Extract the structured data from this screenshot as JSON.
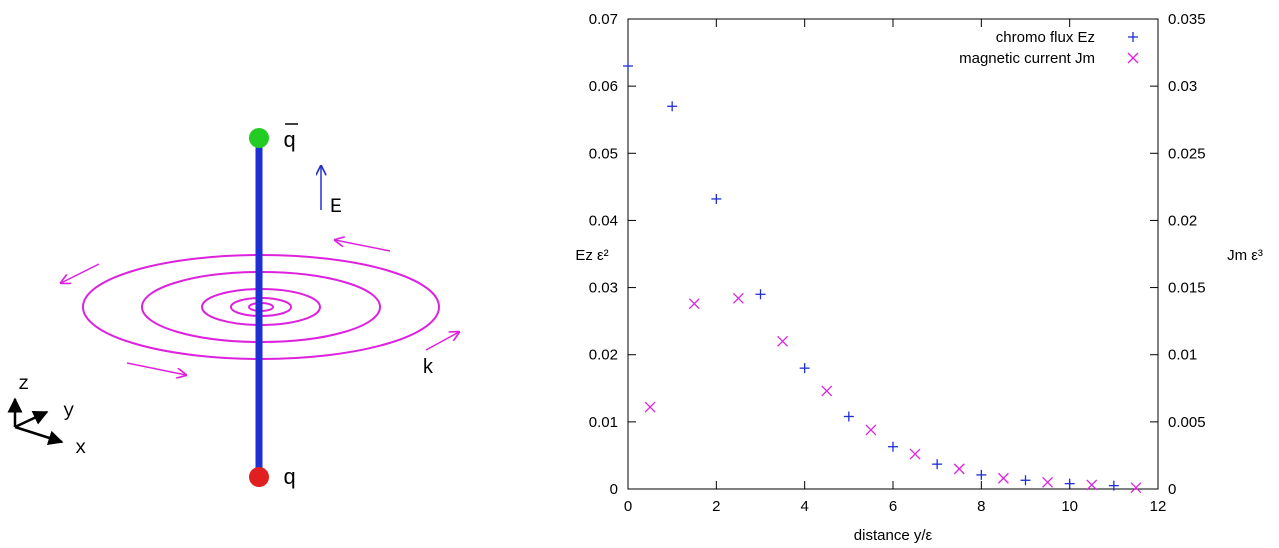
{
  "diagram": {
    "labels": {
      "qbar": "q",
      "q": "q",
      "E": "E",
      "k": "k",
      "axis_z": "z",
      "axis_y": "y",
      "axis_x": "x"
    },
    "colors": {
      "flux_tube": "#1f2fd6",
      "quark": "#e02020",
      "antiquark": "#22cc22",
      "magnetic_current": "#dd22dd",
      "field_arrow": "#2233cc",
      "axes": "#000000"
    }
  },
  "chart_data": {
    "type": "scatter",
    "xlabel": "distance y/ε",
    "ylabel": "Ez ε²",
    "y2label": "Jm ε³",
    "xlim": [
      0,
      12
    ],
    "ylim": [
      0,
      0.07
    ],
    "y2lim": [
      0,
      0.035
    ],
    "xticks": [
      "0",
      "2",
      "4",
      "6",
      "8",
      "10",
      "12"
    ],
    "yticks": [
      "0",
      "0.01",
      "0.02",
      "0.03",
      "0.04",
      "0.05",
      "0.06",
      "0.07"
    ],
    "y2ticks": [
      "0",
      "0.005",
      "0.01",
      "0.015",
      "0.02",
      "0.025",
      "0.03",
      "0.035"
    ],
    "legend_position": "top-right",
    "series": [
      {
        "name": "chromo flux Ez",
        "marker": "+",
        "color": "#1f2fd6",
        "axis": "left",
        "x": [
          0,
          1,
          2,
          3,
          4,
          5,
          6,
          7,
          8,
          9,
          10,
          11
        ],
        "y": [
          0.063,
          0.057,
          0.0432,
          0.029,
          0.018,
          0.0108,
          0.0063,
          0.0037,
          0.0021,
          0.0013,
          0.0008,
          0.0005
        ]
      },
      {
        "name": "magnetic current Jm",
        "marker": "x",
        "color": "#dd22dd",
        "axis": "right",
        "x": [
          0.5,
          1.5,
          2.5,
          3.5,
          4.5,
          5.5,
          6.5,
          7.5,
          8.5,
          9.5,
          10.5,
          11.5
        ],
        "y": [
          0.0061,
          0.0138,
          0.0142,
          0.011,
          0.0073,
          0.0044,
          0.0026,
          0.0015,
          0.0008,
          0.0005,
          0.0003,
          0.0001
        ]
      }
    ]
  }
}
